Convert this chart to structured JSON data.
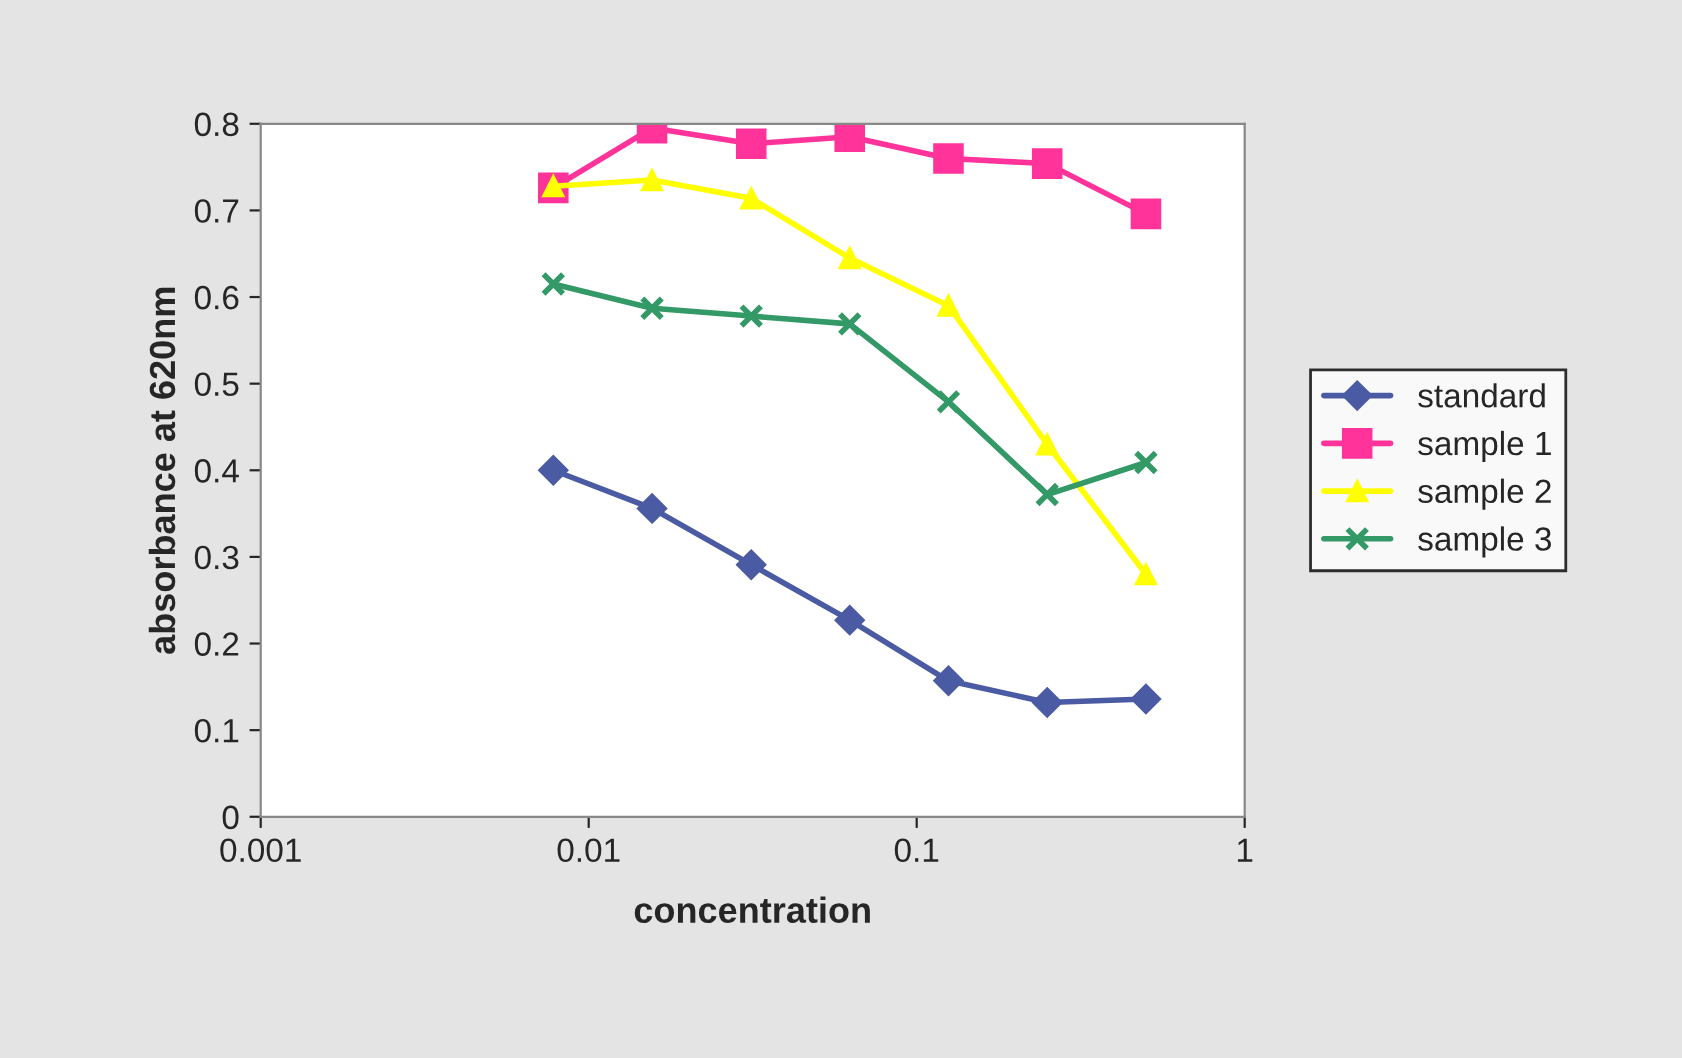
{
  "chart_data": {
    "type": "line",
    "xlabel": "concentration",
    "ylabel": "absorbance at 620nm",
    "x": [
      0.0078,
      0.0156,
      0.0313,
      0.0625,
      0.125,
      0.25,
      0.5
    ],
    "series": [
      {
        "name": "standard",
        "color": "#4b5ba3",
        "marker": "diamond",
        "values": [
          0.4,
          0.356,
          0.291,
          0.227,
          0.157,
          0.132,
          0.136
        ]
      },
      {
        "name": "sample 1",
        "color": "#ff3399",
        "marker": "square",
        "values": [
          0.726,
          0.795,
          0.777,
          0.785,
          0.76,
          0.754,
          0.696
        ]
      },
      {
        "name": "sample 2",
        "color": "#ffff00",
        "marker": "triangle",
        "values": [
          0.728,
          0.735,
          0.714,
          0.645,
          0.59,
          0.43,
          0.28
        ]
      },
      {
        "name": "sample 3",
        "color": "#339966",
        "marker": "cross",
        "values": [
          0.615,
          0.587,
          0.578,
          0.569,
          0.479,
          0.372,
          0.409
        ]
      }
    ],
    "log": "x",
    "xlim": [
      0.001,
      1
    ],
    "xticks": [
      0.001,
      0.01,
      0.1,
      1
    ],
    "ylim": [
      0,
      0.8
    ],
    "yticks": [
      0,
      0.1,
      0.2,
      0.3,
      0.4,
      0.5,
      0.6,
      0.7,
      0.8
    ],
    "grid": false,
    "legend": "right",
    "line_style": "solid"
  }
}
